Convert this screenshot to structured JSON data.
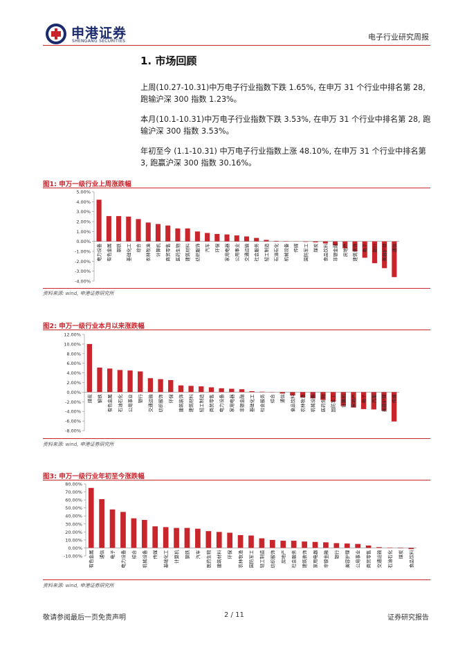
{
  "header": {
    "brand_cn": "申港证券",
    "brand_en": "SHENGANG SECURITIES",
    "report_type": "电子行业研究周报"
  },
  "section": {
    "title": "1. 市场回顾",
    "para1": "上周(10.27-10.31)中万电子行业指数下跌 1.65%, 在申万 31 个行业中排名第 28, 跑输沪深 300 指数 1.23%。",
    "para2": "本月(10.1-10.31)中万电子行业指数下跌 3.53%, 在申万 31 个行业中排名第 28, 跑输沪深 300 指数 3.53%。",
    "para3": "年初至今 (1.1-10.31) 中万电子行业指数上涨 48.10%, 在申万 31 个行业中排名第 3, 跑赢沪深 300 指数 30.16%。"
  },
  "figures": {
    "fig1_title": "图1: 申万一级行业上周涨跌幅",
    "fig2_title": "图2: 申万一级行业本月以来涨跌幅",
    "fig3_title": "图3: 申万一级行业年初至今涨跌幅",
    "source": "资料来源: wind, 申港证券研究所"
  },
  "colors": {
    "bar": "#c9252c",
    "accent": "#c9252c",
    "brand": "#1a2a6c"
  },
  "chart_data": [
    {
      "type": "bar",
      "title": "图1: 申万一级行业上周涨跌幅",
      "ylim": [
        -4,
        5
      ],
      "yticks": [
        5,
        4,
        3,
        2,
        1,
        0,
        -1,
        -2,
        -3,
        -4
      ],
      "ytick_labels": [
        "5.00%",
        "4.00%",
        "3.00%",
        "2.00%",
        "1.00%",
        "0.00%",
        "-1.00%",
        "-2.00%",
        "-3.00%",
        "-4.00%"
      ],
      "categories": [
        "电力设备",
        "有色金属",
        "钢铁",
        "基础化工",
        "综合",
        "农林牧渔",
        "计算机",
        "商贸零售",
        "医药生物",
        "建筑材料",
        "纺织服饰",
        "汽车",
        "环保",
        "家用电器",
        "公用事业",
        "交通运输",
        "社会服务",
        "轻工制造",
        "石油石化",
        "机械设备",
        "传媒",
        "国防军工",
        "煤炭",
        "食品饮料",
        "非银金融",
        "房地产",
        "建筑装饰",
        "电子",
        "银行",
        "美容护理",
        "通信"
      ],
      "values": [
        4.2,
        2.55,
        2.55,
        2.5,
        2.25,
        1.9,
        1.75,
        1.6,
        1.3,
        1.3,
        1.0,
        0.85,
        0.75,
        0.7,
        0.6,
        0.5,
        0.35,
        0.15,
        0.05,
        0.03,
        0.0,
        -0.05,
        -0.1,
        -0.2,
        -0.4,
        -0.7,
        -1.0,
        -1.65,
        -2.2,
        -2.7,
        -3.6
      ]
    },
    {
      "type": "bar",
      "title": "图2: 申万一级行业本月以来涨跌幅",
      "ylim": [
        -8,
        12
      ],
      "yticks": [
        12,
        10,
        8,
        6,
        4,
        2,
        0,
        -2,
        -4,
        -6,
        -8
      ],
      "ytick_labels": [
        "12.00%",
        "10.00%",
        "8.00%",
        "6.00%",
        "4.00%",
        "2.00%",
        "0.00%",
        "-2.00%",
        "-4.00%",
        "-6.00%",
        "-8.00%"
      ],
      "categories": [
        "煤炭",
        "钢铁",
        "有色金属",
        "石油石化",
        "公用事业",
        "银行",
        "交通运输",
        "纺织服饰",
        "环保",
        "建筑装饰",
        "建筑材料",
        "轻工制造",
        "商贸零售",
        "电力设备",
        "家用电器",
        "非银金融",
        "基础化工",
        "社会服务",
        "综合",
        "通信",
        "食品饮料",
        "农林牧渔",
        "机械设备",
        "医药生物",
        "国防军工",
        "计算机",
        "房地产",
        "电子",
        "汽车",
        "美容护理",
        "传媒"
      ],
      "values": [
        10.0,
        5.1,
        4.9,
        4.6,
        4.5,
        4.3,
        2.9,
        2.7,
        2.5,
        1.4,
        1.3,
        1.2,
        1.0,
        0.8,
        0.7,
        0.6,
        0.2,
        0.1,
        0.05,
        -0.3,
        -0.7,
        -1.1,
        -1.3,
        -1.6,
        -2.0,
        -2.9,
        -3.2,
        -3.53,
        -3.6,
        -3.9,
        -6.1
      ]
    },
    {
      "type": "bar",
      "title": "图3: 申万一级行业年初至今涨跌幅",
      "ylim": [
        -10,
        80
      ],
      "yticks": [
        80,
        70,
        60,
        50,
        40,
        30,
        20,
        10,
        0,
        -10
      ],
      "ytick_labels": [
        "80.00%",
        "70.00%",
        "60.00%",
        "50.00%",
        "40.00%",
        "30.00%",
        "20.00%",
        "10.00%",
        "0.00%",
        "-10.00%"
      ],
      "categories": [
        "有色金属",
        "通信",
        "电子",
        "电力设备",
        "综合",
        "机械设备",
        "传媒",
        "基础化工",
        "计算机",
        "钢铁",
        "汽车",
        "医药生物",
        "建筑材料",
        "环保",
        "农林牧渔",
        "国防军工",
        "轻工制造",
        "纺织服饰",
        "房地产",
        "社会服务",
        "建筑装饰",
        "家用电器",
        "非银金融",
        "银行",
        "美容护理",
        "公用事业",
        "商贸零售",
        "交通运输",
        "石油石化",
        "煤炭",
        "食品饮料"
      ],
      "values": [
        75.0,
        61.0,
        48.1,
        45.0,
        37.0,
        35.0,
        27.0,
        26.0,
        25.0,
        25.0,
        24.0,
        21.0,
        20.0,
        19.0,
        16.0,
        15.5,
        12.0,
        10.0,
        9.0,
        9.0,
        8.0,
        7.5,
        7.0,
        6.0,
        5.5,
        5.0,
        3.0,
        1.0,
        0.5,
        -0.5,
        -1.5
      ]
    }
  ],
  "footer": {
    "disclaimer": "敬请参阅最后一页免责声明",
    "page": "2 / 11",
    "report": "证券研究报告"
  }
}
